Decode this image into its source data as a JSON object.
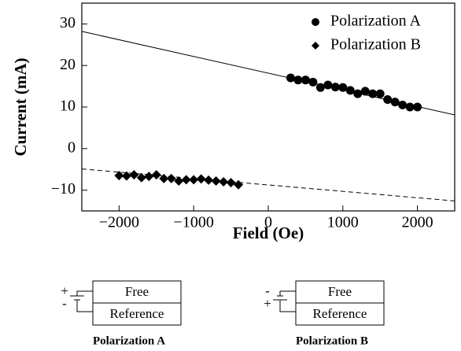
{
  "chart_data": {
    "type": "scatter",
    "xlabel": "Field (Oe)",
    "ylabel": "Current (mA)",
    "xlim": [
      -2500,
      2500
    ],
    "ylim": [
      -15,
      35
    ],
    "xticks": [
      {
        "value": -2000,
        "label": "−2000"
      },
      {
        "value": -1000,
        "label": "−1000"
      },
      0,
      1000,
      2000
    ],
    "yticks": [
      {
        "value": -10,
        "label": "−10"
      },
      0,
      10,
      20,
      30
    ],
    "legend": "upper right",
    "series": [
      {
        "name": "Polarization A",
        "color": "#000000",
        "marker": "circle",
        "x": [
          300,
          400,
          500,
          600,
          700,
          800,
          900,
          1000,
          1100,
          1200,
          1300,
          1400,
          1500,
          1600,
          1700,
          1800,
          1900,
          2000
        ],
        "values": [
          17,
          16.5,
          16.5,
          16,
          14.7,
          15.3,
          14.8,
          14.7,
          14,
          13.2,
          13.8,
          13.2,
          13.2,
          11.8,
          11.2,
          10.5,
          10,
          10
        ]
      },
      {
        "name": "Polarization B",
        "color": "#000000",
        "marker": "diamond",
        "x": [
          -2000,
          -1900,
          -1800,
          -1700,
          -1600,
          -1500,
          -1400,
          -1300,
          -1200,
          -1100,
          -1000,
          -900,
          -800,
          -700,
          -600,
          -500,
          -400
        ],
        "values": [
          -6.5,
          -6.6,
          -6.3,
          -7,
          -6.7,
          -6.3,
          -7.2,
          -7.2,
          -7.8,
          -7.5,
          -7.5,
          -7.3,
          -7.6,
          -7.8,
          -8,
          -8.2,
          -8.7
        ]
      }
    ],
    "fits": [
      {
        "x": [
          -2500,
          2500
        ],
        "values": [
          28.2,
          8.1
        ],
        "style": "solid"
      },
      {
        "x": [
          -2500,
          2500
        ],
        "values": [
          -4.9,
          -12.6
        ],
        "style": "dashed"
      }
    ]
  },
  "diagrams": [
    {
      "top": "Free",
      "bottom": "Reference",
      "caption": "Polarization A",
      "upper_sign": "+",
      "lower_sign": "-"
    },
    {
      "top": "Free",
      "bottom": "Reference",
      "caption": "Polarization B",
      "upper_sign": "-",
      "lower_sign": "+"
    }
  ]
}
